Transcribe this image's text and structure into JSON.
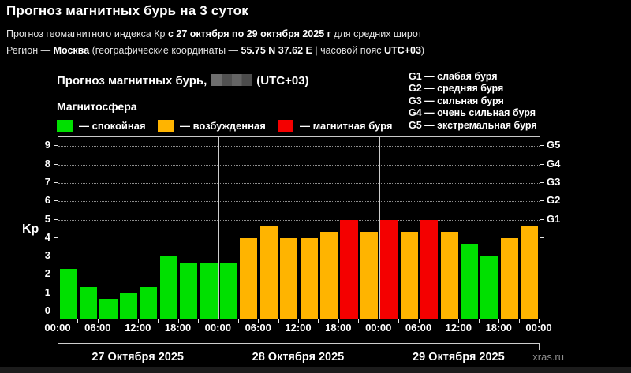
{
  "page": {
    "title": "Прогноз магнитных бурь на 3 суток",
    "subtitle1": {
      "p1": "Прогноз геомагнитного индекса Кр ",
      "p2": "с 27 октября по 29 октября 2025 г",
      "p3": " для средних широт"
    },
    "subtitle2": {
      "p1": "Регион — ",
      "p2": "Москва",
      "p3": " (географические координаты — ",
      "p4": "55.75 N 37.62 E",
      "p5": " | часовой пояс ",
      "p6": "UTC+03",
      "p7": ")"
    },
    "watermark": "xras.ru"
  },
  "chart_header": {
    "title_prefix": "Прогноз магнитных бурь,",
    "title_suffix": "(UTC+03)",
    "legend_title": "Магнитосфера",
    "legend": [
      {
        "name": "quiet",
        "color": "#00e000",
        "label": "— спокойная"
      },
      {
        "name": "excited",
        "color": "#ffb400",
        "label": "— возбужденная"
      },
      {
        "name": "storm",
        "color": "#f40000",
        "label": "— магнитная буря"
      }
    ],
    "g_scale": [
      "G1 — слабая буря",
      "G2 — средняя буря",
      "G3 — сильная буря",
      "G4 — очень сильная буря",
      "G5 — экстремальная буря"
    ]
  },
  "chart_data": {
    "type": "bar",
    "title": "Прогноз магнитных бурь (UTC+03)",
    "ylabel": "Kp",
    "ylim": [
      0,
      9
    ],
    "yticks": [
      0,
      1,
      2,
      3,
      4,
      5,
      6,
      7,
      8,
      9
    ],
    "grid_levels": [
      5,
      6,
      7,
      8,
      9
    ],
    "grid_style": "dotted horizontal lines at G-storm levels only",
    "legend_position": "top",
    "right_axis": [
      {
        "label": "G1",
        "kp": 5
      },
      {
        "label": "G2",
        "kp": 6
      },
      {
        "label": "G3",
        "kp": 7
      },
      {
        "label": "G4",
        "kp": 8
      },
      {
        "label": "G5",
        "kp": 9
      }
    ],
    "hours_per_bar": 3,
    "x_tick_labels": [
      "00:00",
      "06:00",
      "12:00",
      "18:00",
      "00:00",
      "06:00",
      "12:00",
      "18:00",
      "00:00",
      "06:00",
      "12:00",
      "18:00",
      "00:00"
    ],
    "color_map": {
      "green": "#00e000",
      "orange": "#ffb400",
      "red": "#f40000"
    },
    "color_rule": "green Kp<4 спокойная, orange 4<=Kp<5 возбужденная, red Kp>=5 магнитная буря",
    "days": [
      {
        "date": "27 Октября 2025",
        "values": [
          2.33,
          1.33,
          0.67,
          1.0,
          1.33,
          3.0,
          2.67,
          2.67
        ],
        "colors": [
          "green",
          "green",
          "green",
          "green",
          "green",
          "green",
          "green",
          "green"
        ]
      },
      {
        "date": "28 Октября 2025",
        "values": [
          2.67,
          4.0,
          4.67,
          4.0,
          4.0,
          4.33,
          5.0,
          4.33
        ],
        "colors": [
          "green",
          "orange",
          "orange",
          "orange",
          "orange",
          "orange",
          "red",
          "orange"
        ]
      },
      {
        "date": "29 Октября 2025",
        "values": [
          5.0,
          4.33,
          5.0,
          4.33,
          3.67,
          3.0,
          4.0,
          4.67
        ],
        "colors": [
          "red",
          "orange",
          "red",
          "orange",
          "green",
          "green",
          "orange",
          "orange"
        ]
      }
    ]
  }
}
